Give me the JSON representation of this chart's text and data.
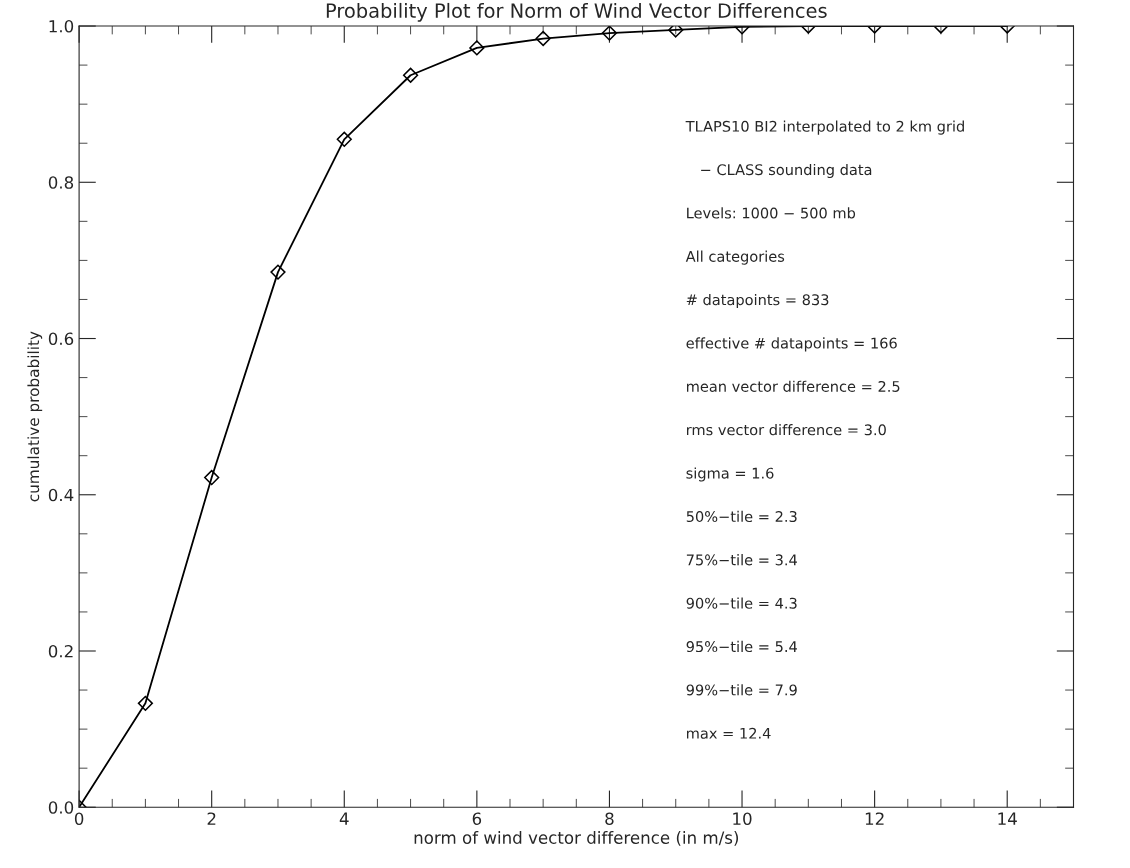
{
  "chart_data": {
    "type": "line",
    "title": "Probability Plot for Norm of Wind Vector Differences",
    "xlabel": "norm of wind vector difference (in m/s)",
    "ylabel": "cumulative probability",
    "x": [
      0,
      1,
      2,
      3,
      4,
      5,
      6,
      7,
      8,
      9,
      10,
      11,
      12,
      13,
      14
    ],
    "series": [
      {
        "color": "#000000",
        "values": [
          0.0,
          0.133,
          0.422,
          0.685,
          0.855,
          0.937,
          0.972,
          0.984,
          0.991,
          0.995,
          0.999,
          1.0,
          1.0,
          1.0,
          1.0
        ]
      }
    ],
    "marker": "diamond",
    "line_style": "solid",
    "grid": false,
    "xlim": [
      0,
      15
    ],
    "ylim": [
      0,
      1.0
    ],
    "xticks": [
      0,
      2,
      4,
      6,
      8,
      10,
      12,
      14
    ],
    "yticks": [
      {
        "value": 0,
        "label": "0.0"
      },
      0.2,
      0.4,
      0.6,
      0.8,
      {
        "value": 1,
        "label": "1.0"
      }
    ],
    "annotations": [
      "TLAPS10 BI2 interpolated to 2 km grid",
      "   − CLASS sounding data",
      "Levels: 1000 − 500 mb",
      "All categories",
      "# datapoints = 833",
      "effective # datapoints = 166",
      "mean vector difference = 2.5",
      "rms vector difference = 3.0",
      "sigma = 1.6",
      "50%−tile = 2.3",
      "75%−tile = 3.4",
      "90%−tile = 4.3",
      "95%−tile = 5.4",
      "99%−tile = 7.9",
      "max = 12.4"
    ]
  }
}
